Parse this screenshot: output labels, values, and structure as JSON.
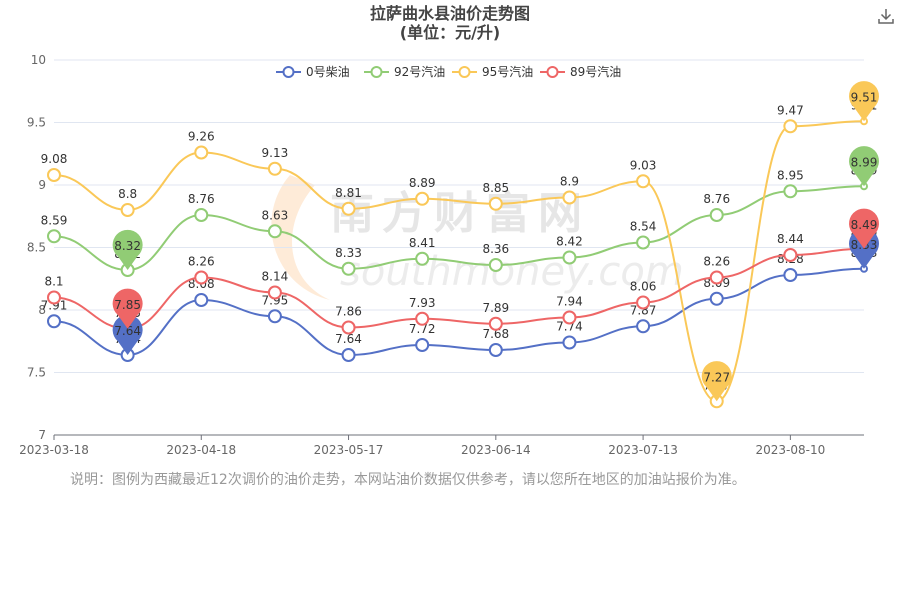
{
  "title_line1": "拉萨曲水县油价走势图",
  "title_line2": "(单位：元/升)",
  "download_icon": "download-icon",
  "note": "说明：图例为西藏最近12次调价的油价走势，本网站油价数据仅供参考，请以您所在地区的加油站报价为准。",
  "watermark_cn": "南方财富网",
  "watermark_en": "southmoney.com",
  "chart_data": {
    "type": "line",
    "title": "拉萨曲水县油价走势图 (单位：元/升)",
    "x_tick_labels": [
      "2023-03-18",
      "2023-04-18",
      "2023-05-17",
      "2023-06-14",
      "2023-07-13",
      "2023-08-10"
    ],
    "x_tick_at_point": [
      0,
      2,
      4,
      6,
      8,
      10
    ],
    "ylim": [
      7,
      10
    ],
    "y_ticks": [
      "7",
      "7.5",
      "8",
      "8.5",
      "9",
      "9.5",
      "10"
    ],
    "legend_position": "top-center",
    "grid": true,
    "series": [
      {
        "name": "0号柴油",
        "color": "#5470c6",
        "values": [
          7.91,
          7.64,
          8.08,
          7.95,
          7.64,
          7.72,
          7.68,
          7.74,
          7.87,
          8.09,
          8.28,
          8.33
        ],
        "max_index": 11,
        "min_index": 1
      },
      {
        "name": "92号汽油",
        "color": "#91cc75",
        "values": [
          8.59,
          8.32,
          8.76,
          8.63,
          8.33,
          8.41,
          8.36,
          8.42,
          8.54,
          8.76,
          8.95,
          8.99
        ],
        "max_index": 11,
        "min_index": 1
      },
      {
        "name": "95号汽油",
        "color": "#fac858",
        "values": [
          9.08,
          8.8,
          9.26,
          9.13,
          8.81,
          8.89,
          8.85,
          8.9,
          9.03,
          7.27,
          9.47,
          9.51
        ],
        "max_index": 11,
        "min_index": 9
      },
      {
        "name": "89号汽油",
        "color": "#ee6666",
        "values": [
          8.1,
          7.85,
          8.26,
          8.14,
          7.86,
          7.93,
          7.89,
          7.94,
          8.06,
          8.26,
          8.44,
          8.49
        ],
        "max_index": 11,
        "min_index": 1
      }
    ]
  }
}
